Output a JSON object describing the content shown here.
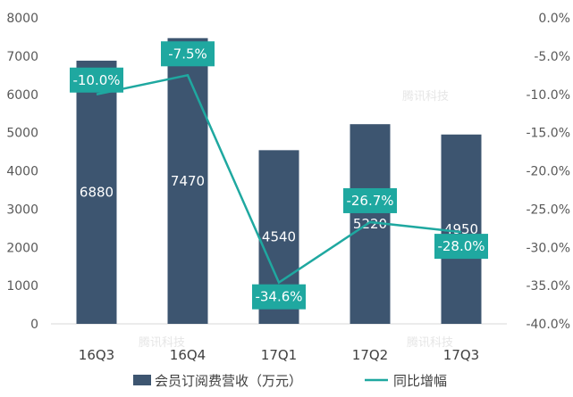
{
  "chart_data": {
    "type": "bar+line",
    "categories": [
      "16Q3",
      "16Q4",
      "17Q1",
      "17Q2",
      "17Q3"
    ],
    "series": [
      {
        "name": "会员订阅费营收（万元）",
        "type": "bar",
        "axis": "left",
        "color": "#3d5570",
        "values": [
          6880,
          7470,
          4540,
          5220,
          4950
        ],
        "labels": [
          "6880",
          "7470",
          "4540",
          "5220",
          "4950"
        ]
      },
      {
        "name": "同比增幅",
        "type": "line",
        "axis": "right",
        "color": "#1fa8a0",
        "values": [
          -10.0,
          -7.5,
          -34.6,
          -26.7,
          -28.0
        ],
        "labels": [
          "-10.0%",
          "-7.5%",
          "-34.6%",
          "-26.7%",
          "-28.0%"
        ]
      }
    ],
    "y_left": {
      "min": 0,
      "max": 8000,
      "ticks": [
        0,
        1000,
        2000,
        3000,
        4000,
        5000,
        6000,
        7000,
        8000
      ],
      "tick_labels": [
        "0",
        "1000",
        "2000",
        "3000",
        "4000",
        "5000",
        "6000",
        "7000",
        "8000"
      ]
    },
    "y_right": {
      "min": -40,
      "max": 0,
      "ticks": [
        0,
        -5,
        -10,
        -15,
        -20,
        -25,
        -30,
        -35,
        -40
      ],
      "tick_labels": [
        "0.0%",
        "-5.0%",
        "-10.0%",
        "-15.0%",
        "-20.0%",
        "-25.0%",
        "-30.0%",
        "-35.0%",
        "-40.0%"
      ]
    },
    "title": "",
    "xlabel": "",
    "ylabel": "",
    "grid": false,
    "legend_position": "bottom"
  },
  "watermark": "腾讯科技",
  "colors": {
    "bar": "#3d5570",
    "line": "#1fa8a0",
    "axis_text": "#595959"
  }
}
